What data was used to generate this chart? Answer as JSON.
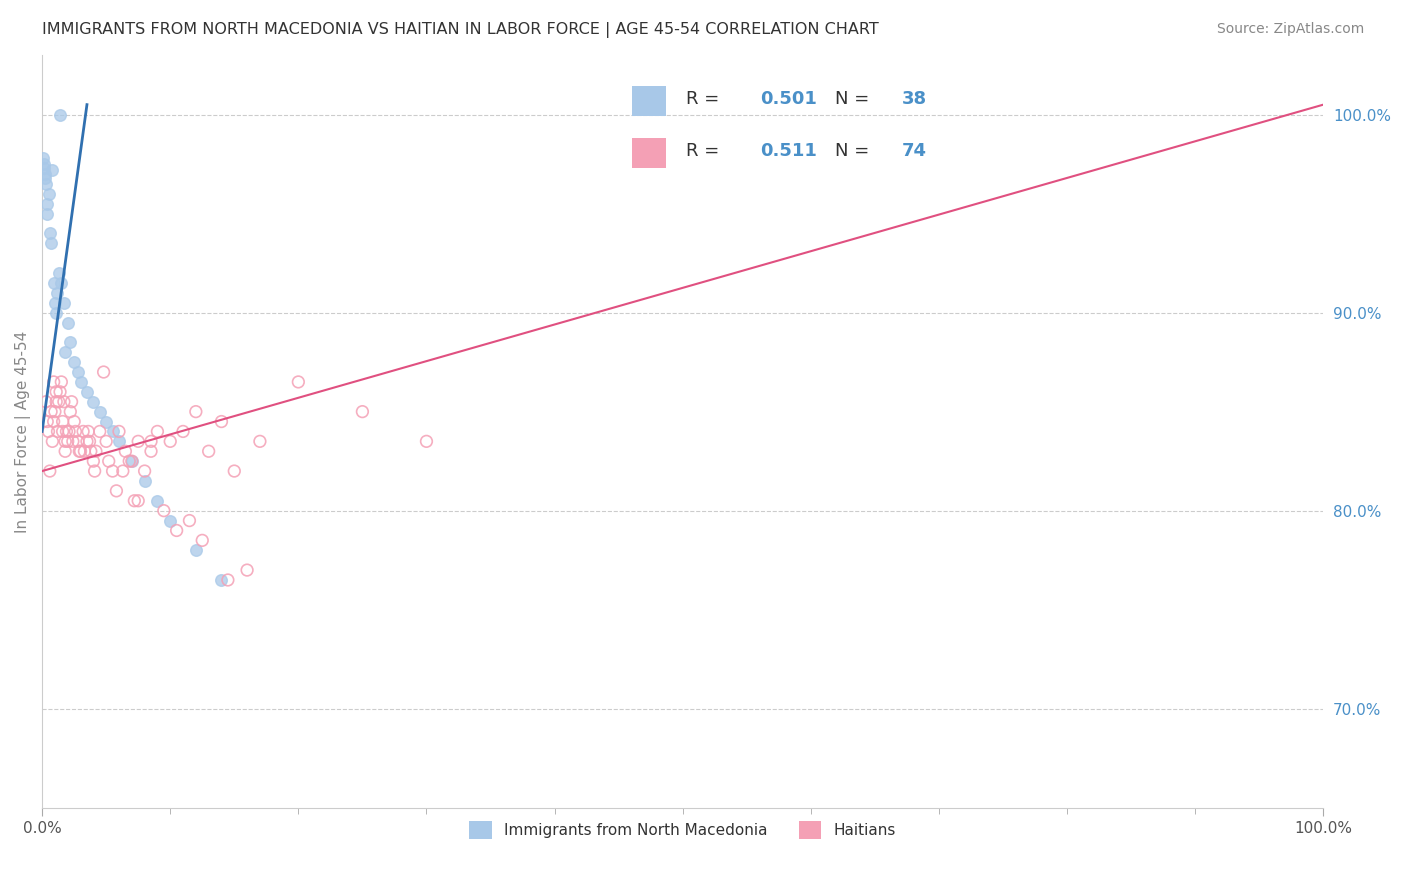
{
  "title": "IMMIGRANTS FROM NORTH MACEDONIA VS HAITIAN IN LABOR FORCE | AGE 45-54 CORRELATION CHART",
  "source": "Source: ZipAtlas.com",
  "ylabel": "In Labor Force | Age 45-54",
  "legend_label1": "Immigrants from North Macedonia",
  "legend_label2": "Haitians",
  "r1": 0.501,
  "n1": 38,
  "r2": 0.511,
  "n2": 74,
  "color_blue": "#a8c8e8",
  "color_blue_fill": "#a8c8e8",
  "color_pink": "#f4a0b5",
  "color_blue_line": "#3070b0",
  "color_pink_line": "#e05080",
  "color_right_axis": "#4a90c8",
  "color_text_rv": "#4a90c8",
  "xmin": 0,
  "xmax": 100,
  "ymin": 65,
  "ymax": 103,
  "right_ytick_vals": [
    70,
    80,
    90,
    100
  ],
  "right_ytick_labels": [
    "70.0%",
    "80.0%",
    "90.0%",
    "100.0%"
  ],
  "nm_x": [
    0.3,
    0.8,
    1.4,
    0.5,
    0.6,
    0.7,
    0.9,
    1.0,
    1.1,
    1.2,
    0.4,
    1.3,
    1.5,
    0.2,
    0.15,
    1.7,
    2.0,
    1.8,
    2.2,
    2.5,
    2.8,
    3.0,
    0.25,
    0.35,
    3.5,
    4.0,
    5.0,
    6.0,
    7.0,
    8.0,
    9.0,
    10.0,
    12.0,
    14.0,
    0.1,
    0.18,
    4.5,
    5.5
  ],
  "nm_y": [
    96.5,
    97.2,
    100.0,
    96.0,
    94.0,
    93.5,
    91.5,
    90.5,
    90.0,
    91.0,
    95.0,
    92.0,
    91.5,
    96.8,
    97.5,
    90.5,
    89.5,
    88.0,
    88.5,
    87.5,
    87.0,
    86.5,
    97.0,
    95.5,
    86.0,
    85.5,
    84.5,
    83.5,
    82.5,
    81.5,
    80.5,
    79.5,
    78.0,
    76.5,
    97.8,
    97.3,
    85.0,
    84.0
  ],
  "ht_x": [
    0.3,
    0.5,
    0.7,
    0.9,
    1.0,
    1.1,
    1.2,
    1.3,
    1.5,
    1.6,
    1.7,
    1.8,
    1.9,
    2.0,
    2.2,
    2.4,
    2.6,
    2.8,
    3.0,
    3.2,
    3.5,
    3.8,
    4.0,
    4.5,
    5.0,
    5.5,
    6.0,
    6.5,
    7.0,
    7.5,
    8.0,
    8.5,
    9.0,
    10.0,
    11.0,
    12.0,
    13.0,
    14.0,
    15.0,
    17.0,
    20.0,
    25.0,
    30.0,
    4.2,
    6.8,
    0.8,
    1.4,
    2.1,
    3.3,
    4.8,
    0.6,
    1.1,
    1.8,
    2.5,
    3.7,
    5.2,
    7.5,
    10.5,
    14.5,
    0.4,
    1.6,
    2.9,
    4.1,
    5.8,
    7.2,
    9.5,
    12.5,
    16.0,
    8.5,
    11.5,
    6.3,
    3.6,
    2.3,
    0.9
  ],
  "ht_y": [
    85.5,
    84.0,
    85.0,
    84.5,
    85.0,
    86.0,
    84.0,
    85.5,
    86.5,
    84.5,
    85.5,
    83.5,
    84.0,
    83.5,
    85.0,
    83.5,
    84.0,
    83.5,
    83.0,
    84.0,
    83.5,
    83.0,
    82.5,
    84.0,
    83.5,
    82.0,
    84.0,
    83.0,
    82.5,
    83.5,
    82.0,
    83.5,
    84.0,
    83.5,
    84.0,
    85.0,
    83.0,
    84.5,
    82.0,
    83.5,
    86.5,
    85.0,
    83.5,
    83.0,
    82.5,
    83.5,
    86.0,
    84.0,
    83.0,
    87.0,
    82.0,
    85.5,
    83.0,
    84.5,
    83.5,
    82.5,
    80.5,
    79.0,
    76.5,
    84.5,
    84.0,
    83.0,
    82.0,
    81.0,
    80.5,
    80.0,
    78.5,
    77.0,
    83.0,
    79.5,
    82.0,
    84.0,
    85.5,
    86.5
  ],
  "nm_line_x0": 0.0,
  "nm_line_y0": 84.0,
  "nm_line_x1": 3.5,
  "nm_line_y1": 100.5,
  "ht_line_x0": 0.0,
  "ht_line_y0": 82.0,
  "ht_line_x1": 100.0,
  "ht_line_y1": 100.5
}
